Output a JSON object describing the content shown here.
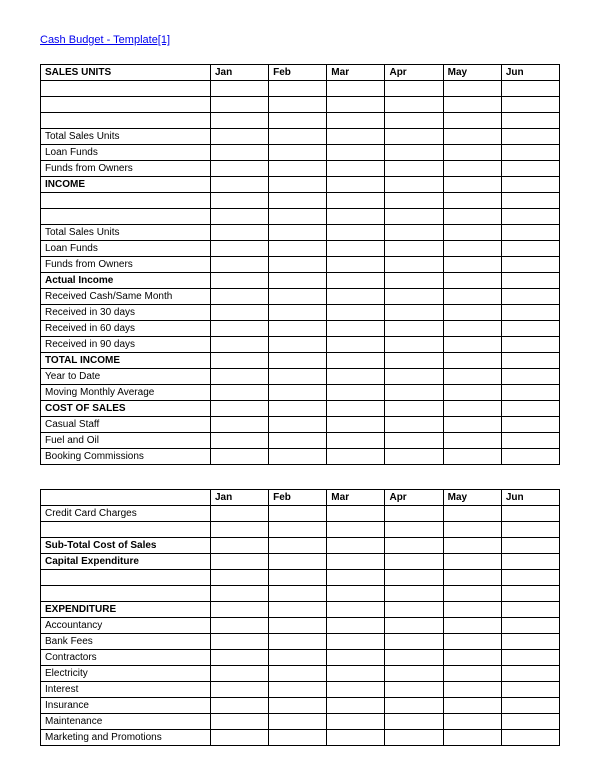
{
  "link": "Cash Budget - Template[1]",
  "months": [
    "Jan",
    "Feb",
    "Mar",
    "Apr",
    "May",
    "Jun"
  ],
  "table1": [
    {
      "label": "SALES UNITS",
      "bold": true,
      "header": true
    },
    {
      "label": ""
    },
    {
      "label": ""
    },
    {
      "label": ""
    },
    {
      "label": "Total Sales Units"
    },
    {
      "label": "Loan Funds"
    },
    {
      "label": "Funds from Owners"
    },
    {
      "label": "INCOME",
      "bold": true
    },
    {
      "label": ""
    },
    {
      "label": ""
    },
    {
      "label": "Total Sales Units"
    },
    {
      "label": "Loan Funds"
    },
    {
      "label": "Funds from Owners"
    },
    {
      "label": "Actual Income",
      "bold": true
    },
    {
      "label": "Received Cash/Same Month"
    },
    {
      "label": "Received in 30 days"
    },
    {
      "label": "Received in 60 days"
    },
    {
      "label": "Received in 90 days"
    },
    {
      "label": "TOTAL INCOME",
      "bold": true
    },
    {
      "label": "Year to Date"
    },
    {
      "label": "Moving Monthly Average"
    },
    {
      "label": "COST OF SALES",
      "bold": true
    },
    {
      "label": "Casual Staff"
    },
    {
      "label": "Fuel and Oil"
    },
    {
      "label": "Booking Commissions"
    }
  ],
  "table2": [
    {
      "label": "",
      "header": true
    },
    {
      "label": "Credit Card Charges"
    },
    {
      "label": ""
    },
    {
      "label": "Sub-Total Cost of Sales",
      "bold": true
    },
    {
      "label": "Capital Expenditure",
      "bold": true
    },
    {
      "label": ""
    },
    {
      "label": ""
    },
    {
      "label": "EXPENDITURE",
      "bold": true
    },
    {
      "label": "Accountancy"
    },
    {
      "label": "Bank Fees"
    },
    {
      "label": "Contractors"
    },
    {
      "label": "Electricity"
    },
    {
      "label": "Interest"
    },
    {
      "label": "Insurance"
    },
    {
      "label": "Maintenance"
    },
    {
      "label": "Marketing and Promotions"
    }
  ]
}
